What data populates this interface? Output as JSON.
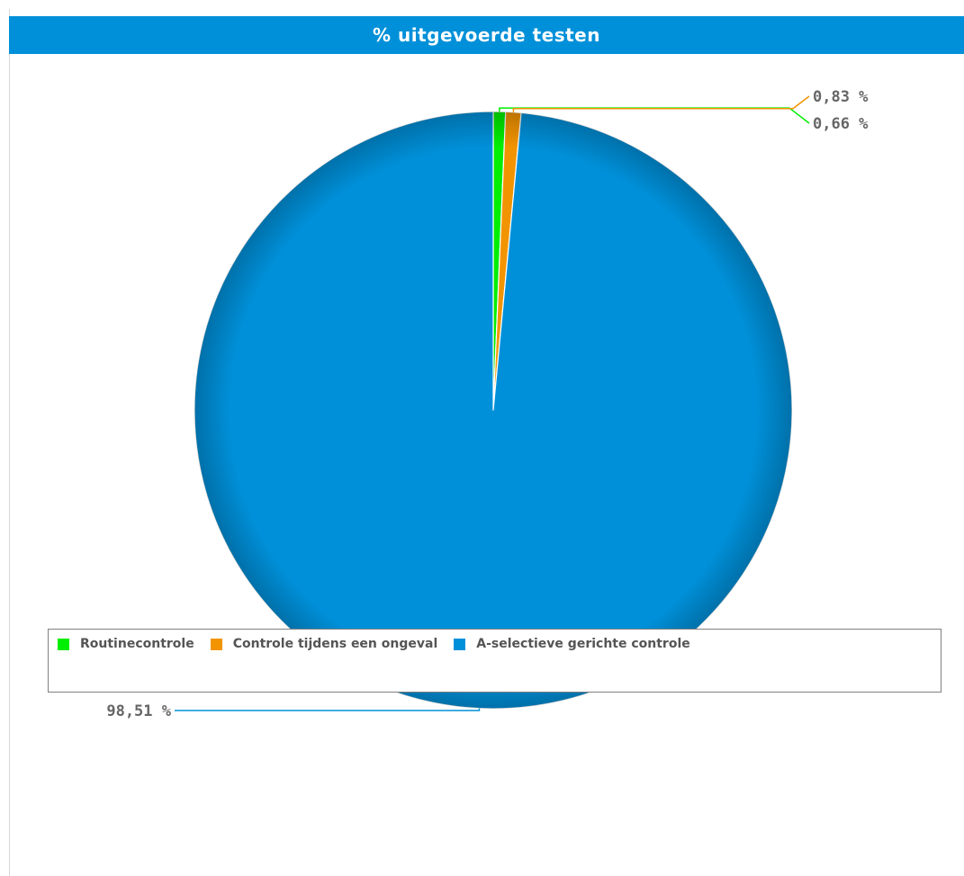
{
  "chart_data": {
    "type": "pie",
    "title": "% uitgevoerde testen",
    "slices": [
      {
        "name": "Routinecontrole",
        "value": 0.66,
        "label": "0,66 %",
        "color": "#00ee00"
      },
      {
        "name": "Controle tijdens een ongeval",
        "value": 0.83,
        "label": "0,83 %",
        "color": "#f29400"
      },
      {
        "name": "A-selectieve gerichte controle",
        "value": 98.51,
        "label": "98,51 %",
        "color": "#0090d9"
      }
    ],
    "legend": {
      "position": "bottom"
    }
  }
}
